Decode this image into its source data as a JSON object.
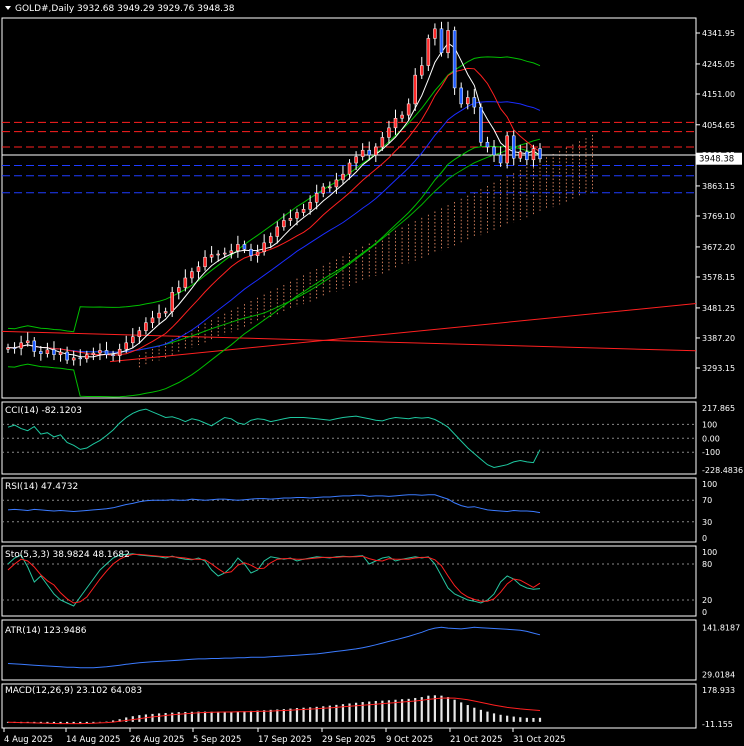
{
  "window": {
    "symbol_line": "GOLD#,Daily  3932.68 3949.29 3929.76 3948.38",
    "price_tag": "3948.38"
  },
  "colors": {
    "bg": "#000000",
    "grid": "#ffffff",
    "text": "#ffffff",
    "up": "#ff2a2a",
    "down": "#1e5bff",
    "ma_fast": "#ffffff",
    "ma_red": "#ff2020",
    "ma_blue": "#1a2cff",
    "ma_green": "#00b400",
    "bb": "#00c000",
    "hline_red": "#ff2020",
    "hline_blue": "#1f3cff",
    "hline_white": "#ffffff",
    "cloud": "#ff9a70",
    "cci": "#1ec8a0",
    "rsi": "#3b7bff",
    "sto_main": "#27c6a0",
    "sto_sig": "#ff2020",
    "atr": "#3b7bff",
    "macd_hist": "#e8e8e8",
    "macd_sig": "#ff2020"
  },
  "main_axis": {
    "ticks": [
      "4341.95",
      "4245.05",
      "4151.00",
      "4054.65",
      "3960.65",
      "3863.15",
      "3769.10",
      "3672.20",
      "3578.15",
      "3481.25",
      "3387.20",
      "3293.15"
    ]
  },
  "x_axis": {
    "labels": [
      "4 Aug 2025",
      "14 Aug 2025",
      "26 Aug 2025",
      "5 Sep 2025",
      "17 Sep 2025",
      "29 Sep 2025",
      "9 Oct 2025",
      "21 Oct 2025",
      "31 Oct 2025"
    ]
  },
  "panels": {
    "cci": {
      "title": "CCI(14) -82.1203",
      "ticks": [
        "217.865",
        "100",
        "0.00",
        "-100",
        "-228.4836"
      ]
    },
    "rsi": {
      "title": "RSI(14) 47.4732",
      "ticks": [
        "100",
        "70",
        "30",
        "0"
      ]
    },
    "sto": {
      "title": "Sto(5,3,3) 38.9824 48.1682",
      "ticks": [
        "100",
        "80",
        "20",
        "0"
      ]
    },
    "atr": {
      "title": "ATR(14) 123.9486",
      "ticks": [
        "141.8187",
        "29.0184"
      ]
    },
    "macd": {
      "title": "MACD(12,26,9) 23.102 64.083",
      "ticks": [
        "178.933",
        "-11.155"
      ]
    }
  },
  "chart_data": {
    "type": "candlestick",
    "symbol": "GOLD#",
    "timeframe": "Daily",
    "last_ohlc": {
      "open": 3932.68,
      "high": 3949.29,
      "low": 3929.76,
      "close": 3948.38
    },
    "close": [
      3357,
      3355,
      3372,
      3378,
      3345,
      3338,
      3350,
      3335,
      3343,
      3318,
      3325,
      3322,
      3335,
      3340,
      3348,
      3335,
      3332,
      3352,
      3372,
      3391,
      3410,
      3435,
      3450,
      3465,
      3470,
      3530,
      3545,
      3575,
      3595,
      3610,
      3640,
      3648,
      3650,
      3653,
      3660,
      3680,
      3665,
      3645,
      3657,
      3685,
      3705,
      3735,
      3755,
      3762,
      3780,
      3790,
      3812,
      3840,
      3860,
      3860,
      3882,
      3900,
      3935,
      3955,
      3975,
      3960,
      3985,
      4015,
      4045,
      4075,
      4085,
      4120,
      4210,
      4240,
      4325,
      4355,
      4280,
      4350,
      4170,
      4120,
      4140,
      4110,
      4000,
      3985,
      3960,
      3935,
      4020,
      3950,
      3970,
      3945,
      3980,
      3948
    ],
    "resistance_lines": [
      4062,
      4033,
      3985
    ],
    "white_line": 3960,
    "support_lines": [
      3927,
      3895,
      3842
    ],
    "cci": [
      80,
      95,
      70,
      55,
      85,
      30,
      40,
      10,
      25,
      -30,
      -50,
      -80,
      -70,
      -40,
      -15,
      20,
      60,
      110,
      150,
      180,
      200,
      210,
      190,
      170,
      150,
      155,
      140,
      120,
      140,
      130,
      110,
      90,
      120,
      150,
      140,
      110,
      100,
      130,
      140,
      135,
      120,
      130,
      140,
      150,
      150,
      150,
      145,
      140,
      135,
      130,
      140,
      150,
      155,
      160,
      150,
      140,
      130,
      125,
      140,
      150,
      145,
      140,
      150,
      145,
      150,
      135,
      110,
      80,
      30,
      -20,
      -70,
      -110,
      -150,
      -190,
      -210,
      -200,
      -190,
      -170,
      -160,
      -170,
      -175,
      -82
    ],
    "rsi": [
      52,
      53,
      52,
      51,
      53,
      52,
      51,
      50,
      51,
      50,
      49,
      50,
      51,
      52,
      53,
      54,
      56,
      59,
      62,
      64,
      67,
      69,
      70,
      70,
      70,
      71,
      70,
      70,
      72,
      71,
      70,
      71,
      72,
      72,
      71,
      70,
      71,
      72,
      73,
      73,
      72,
      73,
      74,
      74,
      75,
      75,
      74,
      75,
      76,
      76,
      77,
      78,
      78,
      79,
      79,
      77,
      78,
      78,
      77,
      78,
      79,
      80,
      80,
      79,
      80,
      80,
      76,
      72,
      65,
      60,
      57,
      58,
      55,
      52,
      51,
      50,
      49,
      51,
      50,
      50,
      49,
      47
    ],
    "sto_main": [
      80,
      90,
      95,
      75,
      50,
      60,
      45,
      30,
      20,
      15,
      10,
      25,
      40,
      55,
      70,
      80,
      90,
      95,
      96,
      97,
      95,
      94,
      93,
      92,
      90,
      93,
      90,
      88,
      87,
      90,
      85,
      70,
      60,
      65,
      75,
      90,
      80,
      65,
      70,
      85,
      92,
      90,
      88,
      90,
      85,
      88,
      90,
      92,
      91,
      90,
      92,
      93,
      92,
      93,
      94,
      80,
      85,
      90,
      92,
      85,
      88,
      90,
      92,
      90,
      92,
      80,
      60,
      40,
      30,
      25,
      20,
      18,
      15,
      20,
      30,
      50,
      60,
      55,
      45,
      40,
      38,
      39
    ],
    "sto_sig": [
      70,
      80,
      88,
      85,
      75,
      62,
      52,
      45,
      32,
      22,
      15,
      17,
      25,
      40,
      55,
      68,
      80,
      88,
      93,
      96,
      96,
      95,
      94,
      93,
      92,
      92,
      91,
      90,
      88,
      88,
      87,
      80,
      72,
      65,
      67,
      78,
      82,
      78,
      72,
      73,
      82,
      88,
      89,
      89,
      88,
      88,
      89,
      90,
      91,
      91,
      91,
      92,
      92,
      92,
      93,
      89,
      86,
      85,
      89,
      88,
      88,
      88,
      90,
      91,
      91,
      87,
      77,
      60,
      44,
      32,
      25,
      21,
      18,
      18,
      22,
      33,
      47,
      55,
      53,
      47,
      41,
      48
    ],
    "atr": [
      55,
      54,
      53,
      52,
      51,
      50,
      49,
      48,
      47,
      46,
      46,
      45,
      45,
      45,
      46,
      47,
      49,
      51,
      53,
      55,
      57,
      58,
      59,
      60,
      61,
      62,
      63,
      64,
      65,
      66,
      66,
      67,
      67,
      68,
      68,
      69,
      69,
      70,
      70,
      70,
      71,
      72,
      73,
      74,
      75,
      76,
      77,
      78,
      80,
      82,
      84,
      86,
      88,
      90,
      93,
      96,
      100,
      104,
      108,
      112,
      116,
      120,
      125,
      130,
      136,
      140,
      142,
      140,
      139,
      138,
      140,
      142,
      141,
      140,
      139,
      138,
      137,
      136,
      135,
      132,
      128,
      124
    ],
    "macd_hist": [
      -5,
      -6,
      -7,
      -6,
      -8,
      -9,
      -10,
      -11,
      -10,
      -11,
      -10,
      -9,
      -8,
      -5,
      -2,
      2,
      8,
      15,
      25,
      32,
      38,
      42,
      45,
      48,
      50,
      52,
      55,
      56,
      57,
      58,
      58,
      57,
      57,
      58,
      58,
      59,
      60,
      62,
      64,
      66,
      68,
      70,
      72,
      75,
      78,
      80,
      82,
      85,
      88,
      92,
      96,
      100,
      104,
      108,
      112,
      115,
      118,
      120,
      122,
      125,
      128,
      130,
      135,
      140,
      148,
      150,
      148,
      140,
      125,
      110,
      95,
      80,
      68,
      58,
      48,
      40,
      35,
      30,
      26,
      23,
      22,
      23
    ],
    "macd_sig": [
      -2,
      -3,
      -4,
      -5,
      -6,
      -7,
      -8,
      -9,
      -10,
      -10,
      -10,
      -10,
      -9,
      -8,
      -6,
      -4,
      -1,
      3,
      8,
      13,
      18,
      23,
      28,
      32,
      36,
      40,
      43,
      46,
      49,
      51,
      53,
      54,
      55,
      56,
      56,
      57,
      57,
      58,
      59,
      60,
      61,
      63,
      64,
      66,
      68,
      70,
      72,
      74,
      77,
      79,
      82,
      85,
      88,
      91,
      94,
      97,
      100,
      103,
      106,
      109,
      112,
      115,
      118,
      122,
      127,
      131,
      134,
      135,
      134,
      130,
      125,
      118,
      110,
      102,
      95,
      88,
      82,
      78,
      73,
      70,
      67,
      64
    ]
  }
}
